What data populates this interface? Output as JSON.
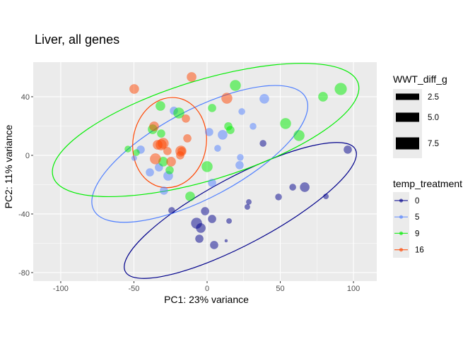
{
  "chart_data": {
    "type": "scatter",
    "title": "Liver, all genes",
    "xlabel": "PC1: 23% variance",
    "ylabel": "PC2: 11% variance",
    "xlim": [
      -118.8,
      115.9
    ],
    "ylim": [
      -85.8,
      63.6
    ],
    "xticks": [
      -100,
      -50,
      0,
      50,
      100
    ],
    "yticks": [
      40,
      0,
      -40,
      -80
    ],
    "grid": true,
    "size_legend": {
      "title": "WWT_diff_g",
      "values": [
        "2.5",
        "5.0",
        "7.5"
      ]
    },
    "color_legend": {
      "title": "temp_treatment",
      "placement": "right"
    },
    "series": [
      {
        "name": "0",
        "color": "#00008B",
        "points": [
          [
            38.2,
            8.2,
            3.5
          ],
          [
            96.1,
            3.9,
            4.7
          ],
          [
            66.7,
            -21.7,
            5.9
          ],
          [
            58.5,
            -21.7,
            3.5
          ],
          [
            48.8,
            -28.4,
            3.5
          ],
          [
            81.2,
            -28.0,
            2.5
          ],
          [
            28.5,
            -31.8,
            2.5
          ],
          [
            27.5,
            -35.2,
            2.5
          ],
          [
            -24.2,
            -37.6,
            3.5
          ],
          [
            -1.4,
            -38.1,
            4.7
          ],
          [
            3.4,
            -43.4,
            4.7
          ],
          [
            15.0,
            -44.8,
            2.5
          ],
          [
            -7.2,
            -46.3,
            7.0
          ],
          [
            -4.3,
            -49.6,
            5.9
          ],
          [
            -5.3,
            -56.9,
            4.7
          ],
          [
            13.0,
            -58.3,
            0.5
          ],
          [
            4.8,
            -61.2,
            4.7
          ]
        ],
        "ellipse": {
          "cx": 22.7,
          "cy": -37.6,
          "a": 89,
          "b": 23,
          "angle": 28
        }
      },
      {
        "name": "5",
        "color": "#4F7FFF",
        "points": [
          [
            -22.7,
            30.4,
            4.7
          ],
          [
            23.7,
            29.9,
            3.5
          ],
          [
            39.1,
            38.6,
            5.9
          ],
          [
            31.4,
            19.8,
            3.5
          ],
          [
            1.4,
            15.9,
            4.7
          ],
          [
            10.6,
            14.0,
            5.9
          ],
          [
            7.2,
            4.8,
            3.5
          ],
          [
            -45.4,
            3.9,
            4.7
          ],
          [
            -49.8,
            -1.9,
            2.5
          ],
          [
            22.7,
            -1.4,
            3.5
          ],
          [
            22.2,
            -6.7,
            4.7
          ],
          [
            -32.9,
            -8.2,
            4.7
          ],
          [
            -39.1,
            -11.6,
            4.7
          ],
          [
            -26.6,
            -14.0,
            5.9
          ],
          [
            3.4,
            -18.8,
            4.7
          ],
          [
            -29.5,
            -24.1,
            4.7
          ]
        ],
        "ellipse": {
          "cx": -5,
          "cy": 1,
          "a": 82,
          "b": 30,
          "angle": 28
        }
      },
      {
        "name": "9",
        "color": "#00EE00",
        "points": [
          [
            19.3,
            47.7,
            7.0
          ],
          [
            79.2,
            40.0,
            5.9
          ],
          [
            91.3,
            45.3,
            8.0
          ],
          [
            3.4,
            32.3,
            4.7
          ],
          [
            -19.3,
            28.9,
            7.0
          ],
          [
            -31.9,
            33.7,
            5.9
          ],
          [
            53.6,
            21.7,
            7.0
          ],
          [
            62.8,
            13.5,
            7.0
          ],
          [
            14.5,
            19.8,
            4.7
          ],
          [
            15.9,
            17.3,
            4.7
          ],
          [
            -37.2,
            17.8,
            5.9
          ],
          [
            -31.4,
            14.9,
            4.7
          ],
          [
            -54.1,
            4.3,
            3.5
          ],
          [
            -48.3,
            1.9,
            3.5
          ],
          [
            0.0,
            -7.7,
            7.0
          ],
          [
            -30.0,
            -4.3,
            5.9
          ],
          [
            -25.6,
            -10.1,
            4.7
          ],
          [
            -11.6,
            -28.0,
            5.9
          ]
        ],
        "ellipse": {
          "cx": -1,
          "cy": 17.3,
          "a": 109,
          "b": 34,
          "angle": 17
        }
      },
      {
        "name": "16",
        "color": "#FF4500",
        "points": [
          [
            -49.8,
            45.3,
            5.9
          ],
          [
            -10.6,
            53.5,
            5.9
          ],
          [
            13.5,
            39.0,
            7.0
          ],
          [
            -14.5,
            25.1,
            4.7
          ],
          [
            -36.2,
            19.8,
            5.9
          ],
          [
            -13.5,
            11.6,
            4.7
          ],
          [
            -30.0,
            8.2,
            7.0
          ],
          [
            -31.4,
            7.2,
            7.0
          ],
          [
            -33.8,
            7.2,
            5.9
          ],
          [
            -27.1,
            2.9,
            4.7
          ],
          [
            -17.4,
            2.9,
            4.7
          ],
          [
            -17.9,
            2.9,
            7.0
          ],
          [
            -18.4,
            0.0,
            4.7
          ],
          [
            -35.3,
            -2.4,
            7.0
          ],
          [
            -24.6,
            -4.3,
            5.9
          ]
        ],
        "ellipse": {
          "cx": -25.6,
          "cy": 8.7,
          "a": 31,
          "b": 25,
          "angle": 80
        }
      }
    ]
  }
}
